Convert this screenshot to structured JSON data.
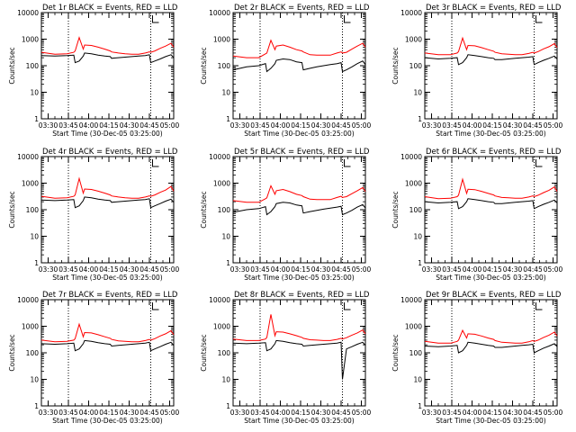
{
  "figure": {
    "xlabel": "Start Time (30-Dec-05 03:25:00)",
    "ylabel": "Counts/sec",
    "x_tick_labels": [
      "03:30",
      "03:45",
      "04:00",
      "04:15",
      "04:30",
      "04:45",
      "05:00"
    ],
    "y_tick_labels": [
      "1",
      "10",
      "100",
      "1000",
      "10000"
    ],
    "colors": {
      "events": "#000000",
      "lld": "#ff0000"
    }
  },
  "chart_data": [
    {
      "type": "line",
      "title": "Det 1r BLACK = Events, RED = LLD",
      "x_minutes": [
        0,
        10,
        19,
        24,
        25,
        28,
        31,
        32,
        37,
        42,
        47,
        51,
        52,
        57,
        62,
        67,
        72,
        77,
        80,
        81,
        84,
        88,
        92,
        96,
        98
      ],
      "xlim": [
        0,
        98
      ],
      "ylim": [
        1,
        10000
      ],
      "yscale": "log",
      "grid": false,
      "dotted_vlines_minutes": [
        20,
        81
      ],
      "series": [
        {
          "name": "BLACK = Events",
          "values": [
            240,
            230,
            240,
            250,
            130,
            150,
            230,
            300,
            280,
            250,
            230,
            220,
            190,
            200,
            210,
            220,
            230,
            240,
            260,
            130,
            150,
            180,
            220,
            260,
            200
          ]
        },
        {
          "name": "RED = LLD",
          "values": [
            320,
            270,
            280,
            320,
            360,
            1150,
            420,
            600,
            580,
            500,
            420,
            360,
            330,
            300,
            280,
            270,
            270,
            300,
            330,
            320,
            360,
            450,
            550,
            700,
            500
          ]
        }
      ]
    },
    {
      "type": "line",
      "title": "Det 2r BLACK = Events, RED = LLD",
      "x_minutes": [
        0,
        10,
        19,
        24,
        25,
        28,
        31,
        32,
        37,
        42,
        47,
        51,
        52,
        57,
        62,
        67,
        72,
        77,
        80,
        81,
        84,
        88,
        92,
        96,
        98
      ],
      "xlim": [
        0,
        98
      ],
      "ylim": [
        1,
        10000
      ],
      "yscale": "log",
      "grid": false,
      "dotted_vlines_minutes": [
        20,
        81
      ],
      "series": [
        {
          "name": "BLACK = Events",
          "values": [
            70,
            90,
            100,
            120,
            60,
            80,
            120,
            160,
            180,
            170,
            140,
            130,
            70,
            80,
            90,
            100,
            110,
            120,
            130,
            60,
            70,
            90,
            120,
            150,
            110
          ]
        },
        {
          "name": "RED = LLD",
          "values": [
            230,
            200,
            200,
            280,
            300,
            900,
            400,
            550,
            600,
            500,
            400,
            360,
            330,
            260,
            250,
            250,
            250,
            300,
            330,
            300,
            320,
            420,
            550,
            700,
            500
          ]
        }
      ]
    },
    {
      "type": "line",
      "title": "Det 3r BLACK = Events, RED = LLD",
      "x_minutes": [
        0,
        10,
        19,
        24,
        25,
        28,
        31,
        32,
        37,
        42,
        47,
        51,
        52,
        57,
        62,
        67,
        72,
        77,
        80,
        81,
        84,
        88,
        92,
        96,
        98
      ],
      "xlim": [
        0,
        98
      ],
      "ylim": [
        1,
        10000
      ],
      "yscale": "log",
      "grid": false,
      "dotted_vlines_minutes": [
        20,
        81
      ],
      "series": [
        {
          "name": "BLACK = Events",
          "values": [
            200,
            180,
            190,
            200,
            110,
            130,
            200,
            260,
            240,
            220,
            200,
            190,
            170,
            170,
            180,
            190,
            200,
            210,
            220,
            110,
            130,
            160,
            190,
            230,
            180
          ]
        },
        {
          "name": "RED = LLD",
          "values": [
            300,
            260,
            260,
            300,
            340,
            1100,
            400,
            580,
            560,
            480,
            400,
            350,
            320,
            280,
            270,
            260,
            260,
            290,
            320,
            300,
            340,
            430,
            520,
            680,
            480
          ]
        }
      ]
    },
    {
      "type": "line",
      "title": "Det 4r BLACK = Events, RED = LLD",
      "x_minutes": [
        0,
        10,
        19,
        24,
        25,
        28,
        31,
        32,
        37,
        42,
        47,
        51,
        52,
        57,
        62,
        67,
        72,
        77,
        80,
        81,
        84,
        88,
        92,
        96,
        98
      ],
      "xlim": [
        0,
        98
      ],
      "ylim": [
        1,
        10000
      ],
      "yscale": "log",
      "grid": false,
      "dotted_vlines_minutes": [
        20,
        81
      ],
      "series": [
        {
          "name": "BLACK = Events",
          "values": [
            230,
            220,
            230,
            240,
            120,
            140,
            220,
            300,
            280,
            250,
            230,
            220,
            190,
            200,
            210,
            220,
            230,
            240,
            260,
            120,
            140,
            170,
            210,
            250,
            190
          ]
        },
        {
          "name": "RED = LLD",
          "values": [
            320,
            270,
            280,
            320,
            360,
            1500,
            420,
            600,
            580,
            500,
            420,
            360,
            330,
            300,
            280,
            270,
            270,
            300,
            330,
            320,
            360,
            450,
            550,
            750,
            500
          ]
        }
      ]
    },
    {
      "type": "line",
      "title": "Det 5r BLACK = Events, RED = LLD",
      "x_minutes": [
        0,
        10,
        19,
        24,
        25,
        28,
        31,
        32,
        37,
        42,
        47,
        51,
        52,
        57,
        62,
        67,
        72,
        77,
        80,
        81,
        84,
        88,
        92,
        96,
        98
      ],
      "xlim": [
        0,
        98
      ],
      "ylim": [
        1,
        10000
      ],
      "yscale": "log",
      "grid": false,
      "dotted_vlines_minutes": [
        20,
        81
      ],
      "series": [
        {
          "name": "BLACK = Events",
          "values": [
            80,
            100,
            110,
            130,
            65,
            85,
            130,
            170,
            190,
            180,
            150,
            140,
            75,
            85,
            95,
            105,
            115,
            125,
            135,
            65,
            75,
            95,
            125,
            155,
            115
          ]
        },
        {
          "name": "RED = LLD",
          "values": [
            220,
            190,
            190,
            260,
            280,
            800,
            380,
            520,
            580,
            480,
            380,
            340,
            310,
            250,
            240,
            240,
            240,
            290,
            320,
            290,
            310,
            400,
            520,
            680,
            480
          ]
        }
      ]
    },
    {
      "type": "line",
      "title": "Det 6r BLACK = Events, RED = LLD",
      "x_minutes": [
        0,
        10,
        19,
        24,
        25,
        28,
        31,
        32,
        37,
        42,
        47,
        51,
        52,
        57,
        62,
        67,
        72,
        77,
        80,
        81,
        84,
        88,
        92,
        96,
        98
      ],
      "xlim": [
        0,
        98
      ],
      "ylim": [
        1,
        10000
      ],
      "yscale": "log",
      "grid": false,
      "dotted_vlines_minutes": [
        20,
        81
      ],
      "series": [
        {
          "name": "BLACK = Events",
          "values": [
            200,
            180,
            190,
            200,
            110,
            130,
            200,
            260,
            240,
            220,
            200,
            190,
            170,
            170,
            180,
            190,
            200,
            210,
            220,
            110,
            130,
            160,
            190,
            230,
            180
          ]
        },
        {
          "name": "RED = LLD",
          "values": [
            310,
            260,
            270,
            310,
            350,
            1400,
            410,
            590,
            570,
            490,
            410,
            360,
            330,
            290,
            280,
            270,
            270,
            300,
            330,
            310,
            350,
            440,
            540,
            720,
            490
          ]
        }
      ]
    },
    {
      "type": "line",
      "title": "Det 7r BLACK = Events, RED = LLD",
      "x_minutes": [
        0,
        10,
        19,
        24,
        25,
        28,
        31,
        32,
        37,
        42,
        47,
        51,
        52,
        57,
        62,
        67,
        72,
        77,
        80,
        81,
        84,
        88,
        92,
        96,
        98
      ],
      "xlim": [
        0,
        98
      ],
      "ylim": [
        1,
        10000
      ],
      "yscale": "log",
      "grid": false,
      "dotted_vlines_minutes": [
        20,
        81
      ],
      "series": [
        {
          "name": "BLACK = Events",
          "values": [
            220,
            210,
            220,
            230,
            120,
            140,
            220,
            290,
            270,
            240,
            220,
            210,
            180,
            190,
            200,
            210,
            220,
            230,
            250,
            120,
            140,
            170,
            210,
            250,
            190
          ]
        },
        {
          "name": "RED = LLD",
          "values": [
            300,
            260,
            270,
            300,
            340,
            1200,
            400,
            580,
            560,
            480,
            400,
            350,
            320,
            280,
            270,
            260,
            260,
            290,
            320,
            300,
            340,
            430,
            520,
            680,
            480
          ]
        }
      ]
    },
    {
      "type": "line",
      "title": "Det 8r BLACK = Events, RED = LLD",
      "x_minutes": [
        0,
        10,
        19,
        24,
        25,
        28,
        31,
        32,
        37,
        42,
        47,
        51,
        52,
        57,
        62,
        67,
        72,
        77,
        80,
        81,
        84,
        88,
        92,
        96,
        98
      ],
      "xlim": [
        0,
        98
      ],
      "ylim": [
        1,
        10000
      ],
      "yscale": "log",
      "grid": false,
      "dotted_vlines_minutes": [
        20,
        81
      ],
      "series": [
        {
          "name": "BLACK = Events",
          "values": [
            230,
            220,
            230,
            240,
            120,
            140,
            220,
            290,
            270,
            240,
            220,
            210,
            180,
            190,
            200,
            210,
            220,
            230,
            250,
            10,
            140,
            170,
            210,
            250,
            190
          ]
        },
        {
          "name": "RED = LLD",
          "values": [
            330,
            290,
            290,
            330,
            380,
            2800,
            440,
            620,
            600,
            520,
            440,
            380,
            350,
            310,
            300,
            290,
            290,
            320,
            350,
            330,
            370,
            460,
            560,
            720,
            520
          ]
        }
      ]
    },
    {
      "type": "line",
      "title": "Det 9r BLACK = Events, RED = LLD",
      "x_minutes": [
        0,
        10,
        19,
        24,
        25,
        28,
        31,
        32,
        37,
        42,
        47,
        51,
        52,
        57,
        62,
        67,
        72,
        77,
        80,
        81,
        84,
        88,
        92,
        96,
        98
      ],
      "xlim": [
        0,
        98
      ],
      "ylim": [
        1,
        10000
      ],
      "yscale": "log",
      "grid": false,
      "dotted_vlines_minutes": [
        20,
        81
      ],
      "series": [
        {
          "name": "BLACK = Events",
          "values": [
            180,
            170,
            180,
            190,
            100,
            120,
            190,
            250,
            230,
            210,
            190,
            180,
            160,
            160,
            170,
            180,
            190,
            200,
            210,
            100,
            120,
            150,
            180,
            220,
            170
          ]
        },
        {
          "name": "RED = LLD",
          "values": [
            270,
            230,
            230,
            270,
            300,
            700,
            360,
            520,
            500,
            430,
            360,
            320,
            290,
            250,
            240,
            230,
            230,
            260,
            290,
            270,
            300,
            380,
            460,
            600,
            430
          ]
        }
      ]
    }
  ]
}
